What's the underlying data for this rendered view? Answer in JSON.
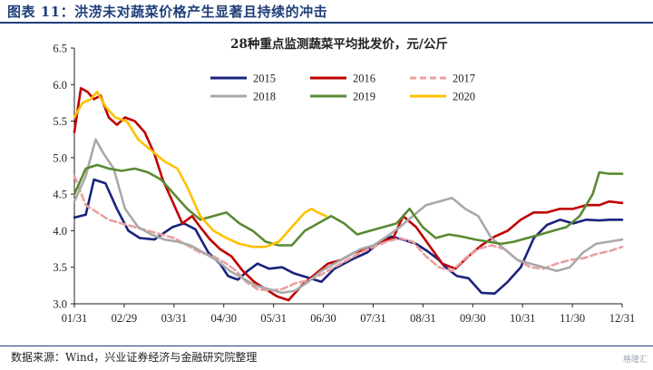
{
  "figure": {
    "title": "图表 11：洪涝未对蔬菜价格产生显著且持续的冲击",
    "source": "数据来源：Wind，兴业证券经济与金融研究院整理",
    "watermark": "格隆汇"
  },
  "chart_data": {
    "type": "line",
    "title": "28种重点监测蔬菜平均批发价，元/公斤",
    "xlabel": "",
    "ylabel": "",
    "ylim": [
      3.0,
      6.5
    ],
    "yticks": [
      "3.0",
      "3.5",
      "4.0",
      "4.5",
      "5.0",
      "5.5",
      "6.0",
      "6.5"
    ],
    "xticks": [
      "01/31",
      "02/29",
      "03/31",
      "04/30",
      "05/31",
      "06/30",
      "07/31",
      "08/31",
      "09/30",
      "10/31",
      "11/30",
      "12/31"
    ],
    "x_day_range": [
      31,
      366
    ],
    "legend_position": "top-center",
    "series": [
      {
        "name": "2015",
        "color": "#1a237e",
        "dash": false,
        "days": [
          31,
          38,
          43,
          50,
          57,
          64,
          71,
          80,
          91,
          98,
          105,
          113,
          120,
          125,
          131,
          137,
          143,
          150,
          158,
          165,
          175,
          182,
          190,
          196,
          202,
          210,
          218,
          225,
          232,
          240,
          247,
          254,
          258,
          265,
          272,
          280,
          288,
          296,
          304,
          312,
          320,
          328,
          336,
          344,
          352,
          358,
          366
        ],
        "values": [
          4.18,
          4.22,
          4.7,
          4.65,
          4.3,
          4.0,
          3.9,
          3.88,
          4.05,
          4.1,
          4.02,
          3.7,
          3.55,
          3.38,
          3.33,
          3.45,
          3.55,
          3.48,
          3.5,
          3.42,
          3.35,
          3.3,
          3.48,
          3.55,
          3.62,
          3.7,
          3.85,
          3.92,
          3.88,
          3.82,
          3.72,
          3.6,
          3.5,
          3.38,
          3.35,
          3.15,
          3.14,
          3.3,
          3.5,
          3.9,
          4.08,
          4.15,
          4.1,
          4.15,
          4.14,
          4.15,
          4.15
        ]
      },
      {
        "name": "2016",
        "color": "#c00000",
        "dash": false,
        "days": [
          31,
          35,
          39,
          43,
          47,
          52,
          57,
          62,
          68,
          74,
          80,
          85,
          91,
          97,
          103,
          108,
          114,
          120,
          127,
          134,
          141,
          148,
          155,
          162,
          170,
          178,
          186,
          194,
          202,
          210,
          218,
          226,
          232,
          240,
          248,
          256,
          264,
          272,
          280,
          288,
          296,
          304,
          312,
          320,
          328,
          336,
          344,
          352,
          358,
          366
        ],
        "values": [
          5.35,
          5.95,
          5.9,
          5.8,
          5.85,
          5.55,
          5.45,
          5.55,
          5.5,
          5.35,
          5.05,
          4.7,
          4.4,
          4.1,
          4.2,
          4.05,
          3.88,
          3.75,
          3.65,
          3.45,
          3.3,
          3.2,
          3.1,
          3.05,
          3.25,
          3.4,
          3.55,
          3.6,
          3.7,
          3.75,
          3.85,
          3.9,
          4.2,
          4.05,
          3.8,
          3.55,
          3.48,
          3.65,
          3.8,
          3.92,
          4.0,
          4.15,
          4.25,
          4.25,
          4.3,
          4.3,
          4.35,
          4.35,
          4.4,
          4.38
        ]
      },
      {
        "name": "2017",
        "color": "#e8a0a0",
        "dash": true,
        "days": [
          31,
          38,
          45,
          52,
          60,
          68,
          76,
          84,
          92,
          100,
          108,
          116,
          124,
          130,
          136,
          143,
          150,
          158,
          166,
          174,
          182,
          190,
          198,
          206,
          214,
          222,
          230,
          238,
          246,
          254,
          262,
          270,
          278,
          286,
          294,
          302,
          310,
          318,
          326,
          334,
          342,
          350,
          358,
          366
        ],
        "values": [
          4.75,
          4.35,
          4.25,
          4.15,
          4.1,
          4.05,
          4.0,
          3.95,
          3.9,
          3.8,
          3.7,
          3.65,
          3.55,
          3.45,
          3.3,
          3.2,
          3.18,
          3.2,
          3.28,
          3.32,
          3.4,
          3.5,
          3.6,
          3.7,
          3.78,
          3.85,
          3.9,
          3.85,
          3.65,
          3.5,
          3.45,
          3.62,
          3.75,
          3.8,
          3.75,
          3.6,
          3.5,
          3.48,
          3.55,
          3.6,
          3.62,
          3.68,
          3.72,
          3.78
        ]
      },
      {
        "name": "2018",
        "color": "#a9a9a9",
        "dash": false,
        "days": [
          31,
          38,
          44,
          49,
          55,
          62,
          70,
          78,
          86,
          94,
          102,
          110,
          118,
          126,
          134,
          142,
          150,
          158,
          166,
          174,
          182,
          190,
          198,
          206,
          214,
          222,
          230,
          238,
          246,
          254,
          262,
          270,
          278,
          286,
          294,
          302,
          310,
          318,
          326,
          334,
          342,
          350,
          358,
          366
        ],
        "values": [
          4.4,
          4.75,
          5.25,
          5.05,
          4.85,
          4.3,
          4.05,
          3.95,
          3.88,
          3.85,
          3.8,
          3.7,
          3.6,
          3.45,
          3.35,
          3.25,
          3.2,
          3.15,
          3.18,
          3.3,
          3.45,
          3.55,
          3.65,
          3.75,
          3.8,
          3.92,
          4.05,
          4.2,
          4.35,
          4.4,
          4.45,
          4.3,
          4.2,
          3.9,
          3.75,
          3.6,
          3.55,
          3.5,
          3.45,
          3.5,
          3.7,
          3.82,
          3.85,
          3.88
        ]
      },
      {
        "name": "2019",
        "color": "#5a8a32",
        "dash": false,
        "days": [
          31,
          38,
          45,
          52,
          60,
          68,
          76,
          84,
          92,
          100,
          108,
          116,
          124,
          132,
          140,
          148,
          156,
          164,
          172,
          180,
          188,
          196,
          204,
          212,
          220,
          228,
          236,
          244,
          252,
          260,
          268,
          276,
          284,
          292,
          300,
          308,
          316,
          324,
          332,
          340,
          348,
          352,
          358,
          366
        ],
        "values": [
          4.5,
          4.85,
          4.9,
          4.85,
          4.82,
          4.85,
          4.8,
          4.7,
          4.5,
          4.3,
          4.15,
          4.2,
          4.25,
          4.1,
          4.0,
          3.85,
          3.8,
          3.8,
          4.0,
          4.1,
          4.2,
          4.1,
          3.95,
          4.0,
          4.05,
          4.1,
          4.3,
          4.05,
          3.9,
          3.95,
          3.92,
          3.88,
          3.85,
          3.82,
          3.85,
          3.9,
          3.95,
          4.0,
          4.05,
          4.2,
          4.5,
          4.8,
          4.78,
          4.78
        ]
      },
      {
        "name": "2020",
        "color": "#ffc000",
        "dash": false,
        "days": [
          31,
          36,
          41,
          45,
          50,
          56,
          63,
          70,
          78,
          86,
          94,
          100,
          108,
          116,
          124,
          132,
          140,
          148,
          156,
          164,
          172,
          176,
          180,
          185
        ],
        "values": [
          5.55,
          5.75,
          5.8,
          5.9,
          5.7,
          5.55,
          5.5,
          5.25,
          5.1,
          4.95,
          4.85,
          4.6,
          4.2,
          4.0,
          3.9,
          3.82,
          3.78,
          3.78,
          3.85,
          4.05,
          4.25,
          4.3,
          4.25,
          4.2
        ]
      }
    ]
  }
}
